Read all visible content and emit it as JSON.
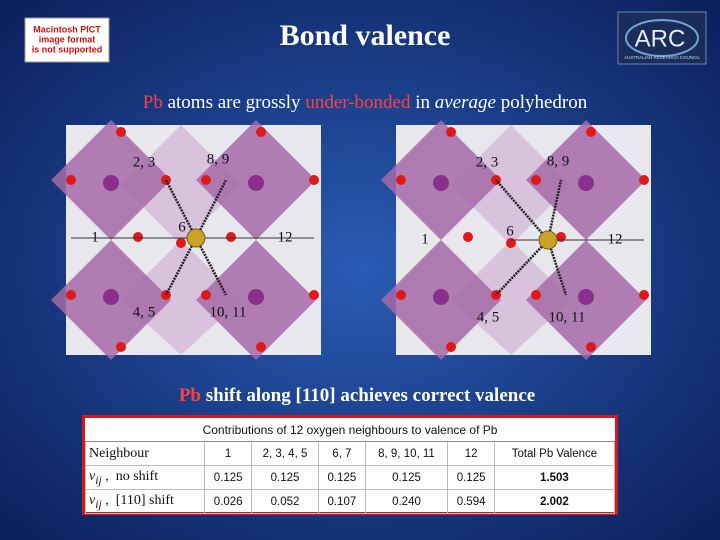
{
  "header": {
    "title": "Bond valence",
    "placeholder": [
      "Macintosh PICT",
      "image format",
      "is not supported"
    ],
    "logo": {
      "name": "ARC",
      "subtitle": "AUSTRALIAN RESEARCH COUNCIL"
    }
  },
  "subtitle": {
    "parts": [
      "Pb",
      " atoms are grossly ",
      "under-bonded",
      " in ",
      "average",
      " polyhedron"
    ]
  },
  "diagrams": [
    {
      "labels": [
        "2, 3",
        "8, 9",
        "6",
        "1",
        "12",
        "4, 5",
        "10, 11"
      ]
    },
    {
      "labels": [
        "2, 3",
        "8, 9",
        "6",
        "1",
        "12",
        "4, 5",
        "10, 11"
      ]
    }
  ],
  "caption": {
    "parts": [
      "Pb",
      " shift along [110] achieves correct valence"
    ]
  },
  "table": {
    "caption": "Contributions of 12 oxygen neighbours to valence of Pb",
    "header": [
      "Neighbour",
      "1",
      "2, 3, 4, 5",
      "6, 7",
      "8, 9, 10, 11",
      "12",
      "Total Pb Valence"
    ],
    "rows": [
      {
        "label": [
          "v",
          "ij",
          " ,  no shift"
        ],
        "cells": [
          "0.125",
          "0.125",
          "0.125",
          "0.125",
          "0.125",
          "1.503"
        ]
      },
      {
        "label": [
          "v",
          "ij",
          " ,  [110] shift"
        ],
        "cells": [
          "0.026",
          "0.052",
          "0.107",
          "0.240",
          "0.594",
          "2.002"
        ]
      }
    ]
  }
}
